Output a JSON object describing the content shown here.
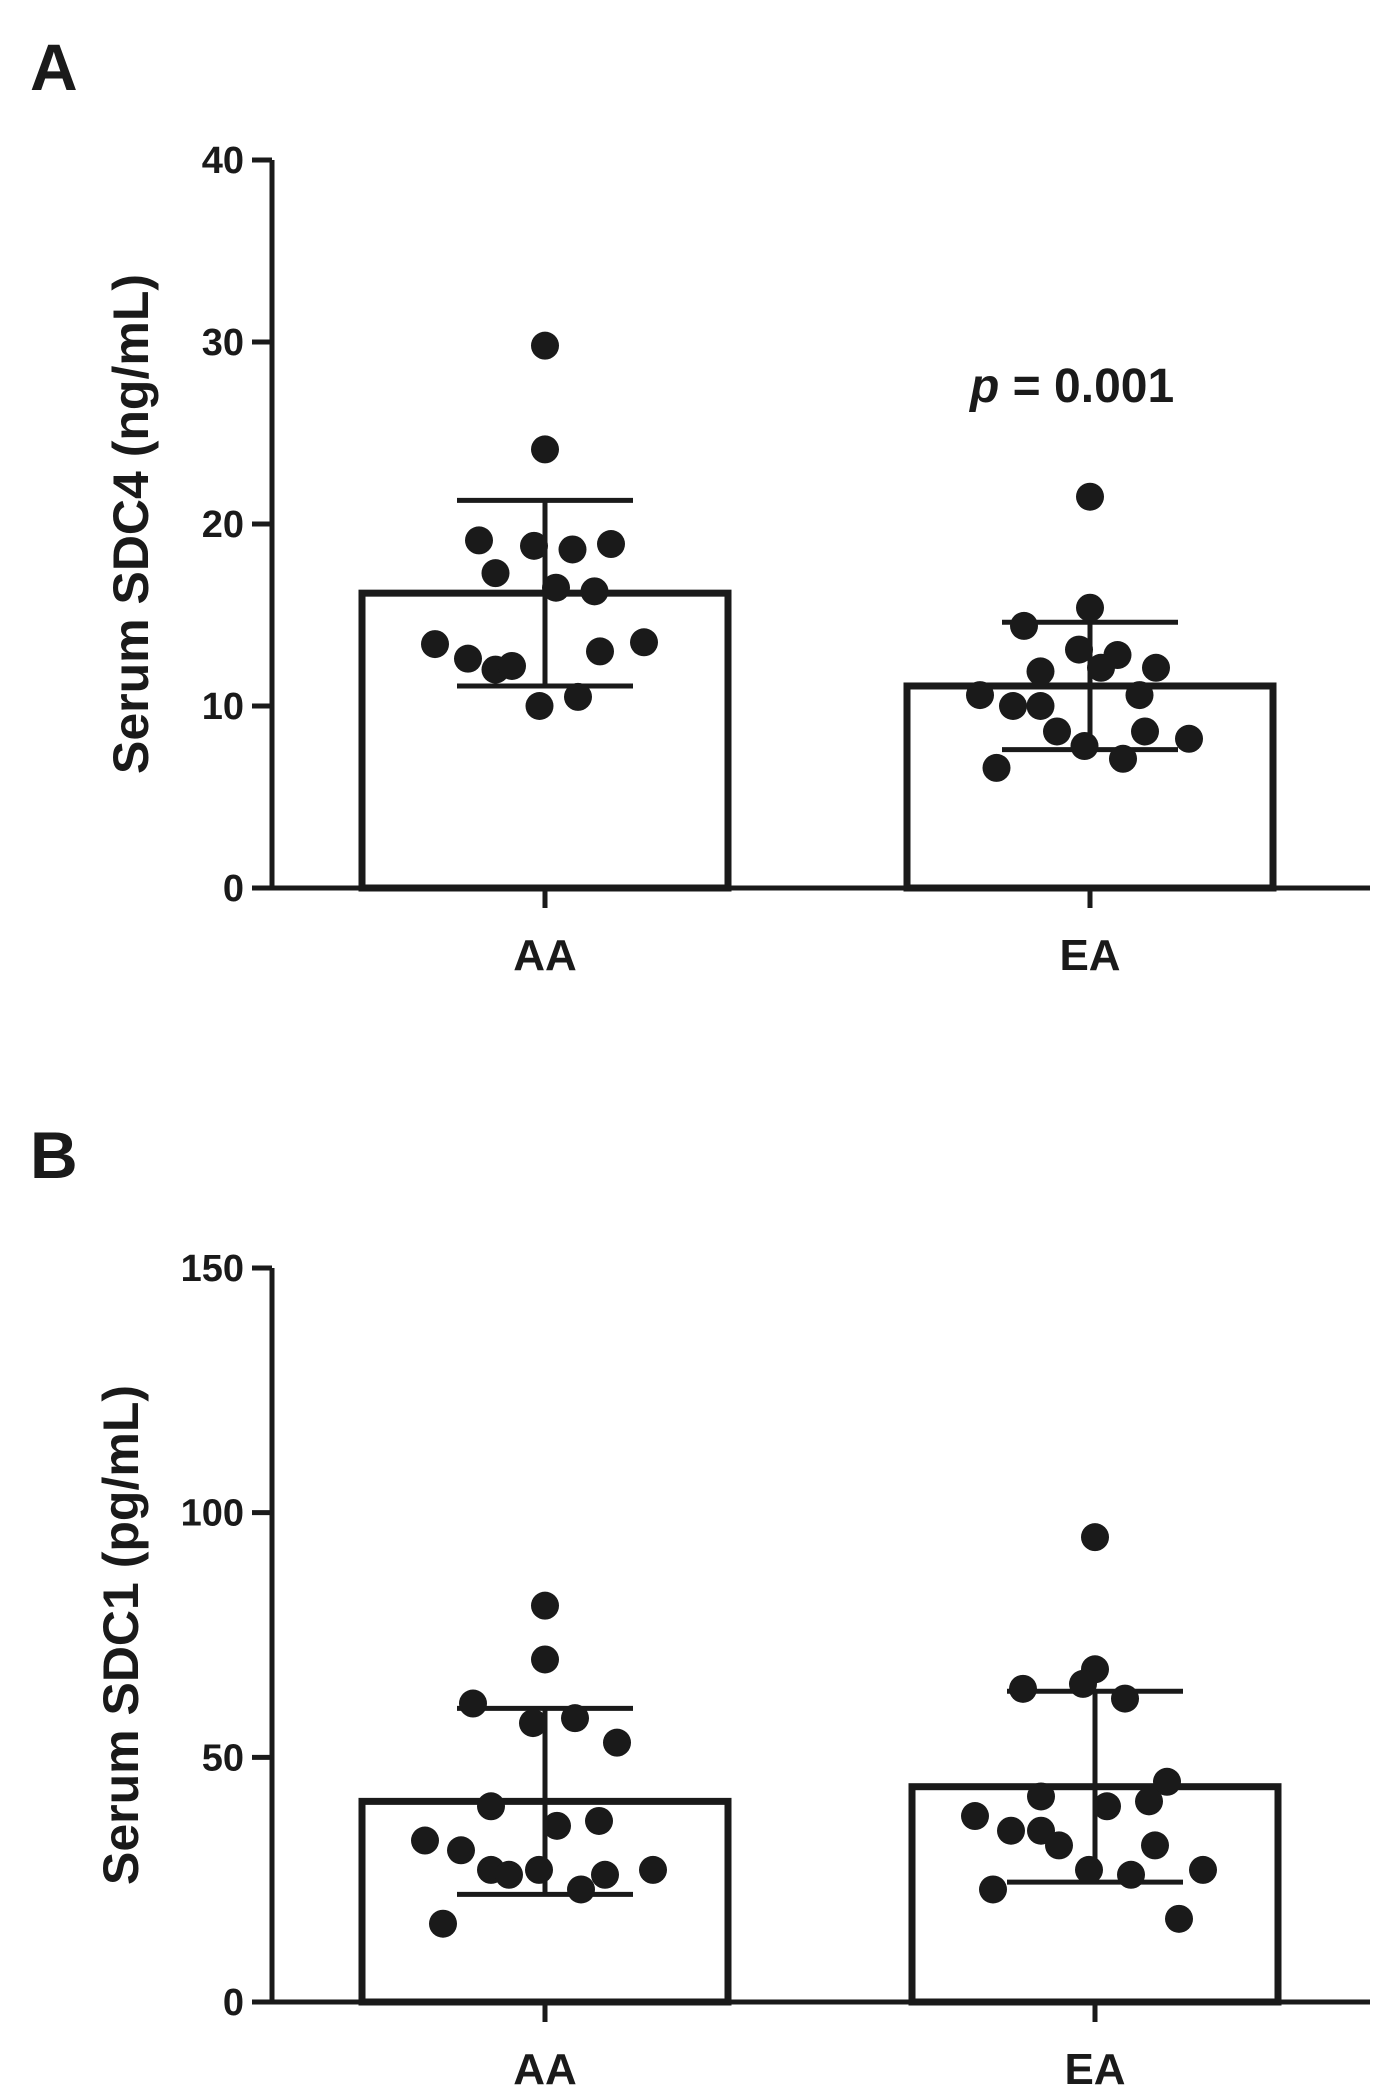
{
  "chart_data": [
    {
      "panel": "A",
      "type": "bar",
      "ylabel": "Serum SDC4 (ng/mL)",
      "xlabel": "",
      "ylim": [
        0,
        40
      ],
      "yticks": [
        "0",
        "10",
        "20",
        "30",
        "40"
      ],
      "yticks_values": [
        0,
        10,
        20,
        30,
        40
      ],
      "categories": [
        "AA",
        "EA"
      ],
      "values": [
        16.2,
        11.1
      ],
      "sd": [
        5.1,
        3.5
      ],
      "annotation": {
        "italic": "p",
        "text": " = 0.001"
      },
      "points": [
        [
          29.8,
          24.1,
          19.1,
          18.8,
          18.6,
          18.9,
          17.3,
          16.5,
          16.3,
          13.4,
          12.6,
          12.0,
          12.2,
          13.0,
          13.5,
          10.0,
          10.5
        ],
        [
          21.5,
          15.4,
          14.4,
          13.1,
          12.8,
          12.1,
          11.9,
          12.1,
          10.6,
          10.6,
          10.0,
          10.0,
          8.6,
          8.6,
          8.2,
          7.8,
          7.1,
          6.6
        ]
      ]
    },
    {
      "panel": "B",
      "type": "bar",
      "ylabel": "Serum SDC1 (pg/mL)",
      "xlabel": "",
      "ylim": [
        0,
        150
      ],
      "yticks": [
        "0",
        "50",
        "100",
        "150"
      ],
      "yticks_values": [
        0,
        50,
        100,
        150
      ],
      "categories": [
        "AA",
        "EA"
      ],
      "values": [
        41,
        44
      ],
      "sd": [
        19,
        19.5
      ],
      "points": [
        [
          81,
          70,
          61,
          57,
          58,
          53,
          40,
          36,
          37,
          33,
          31,
          27,
          26,
          26,
          27,
          27,
          23,
          16
        ],
        [
          95,
          68,
          64,
          65,
          62,
          45,
          42,
          40,
          41,
          38,
          35,
          35,
          32,
          32,
          27,
          27,
          26,
          23,
          17
        ]
      ]
    }
  ]
}
